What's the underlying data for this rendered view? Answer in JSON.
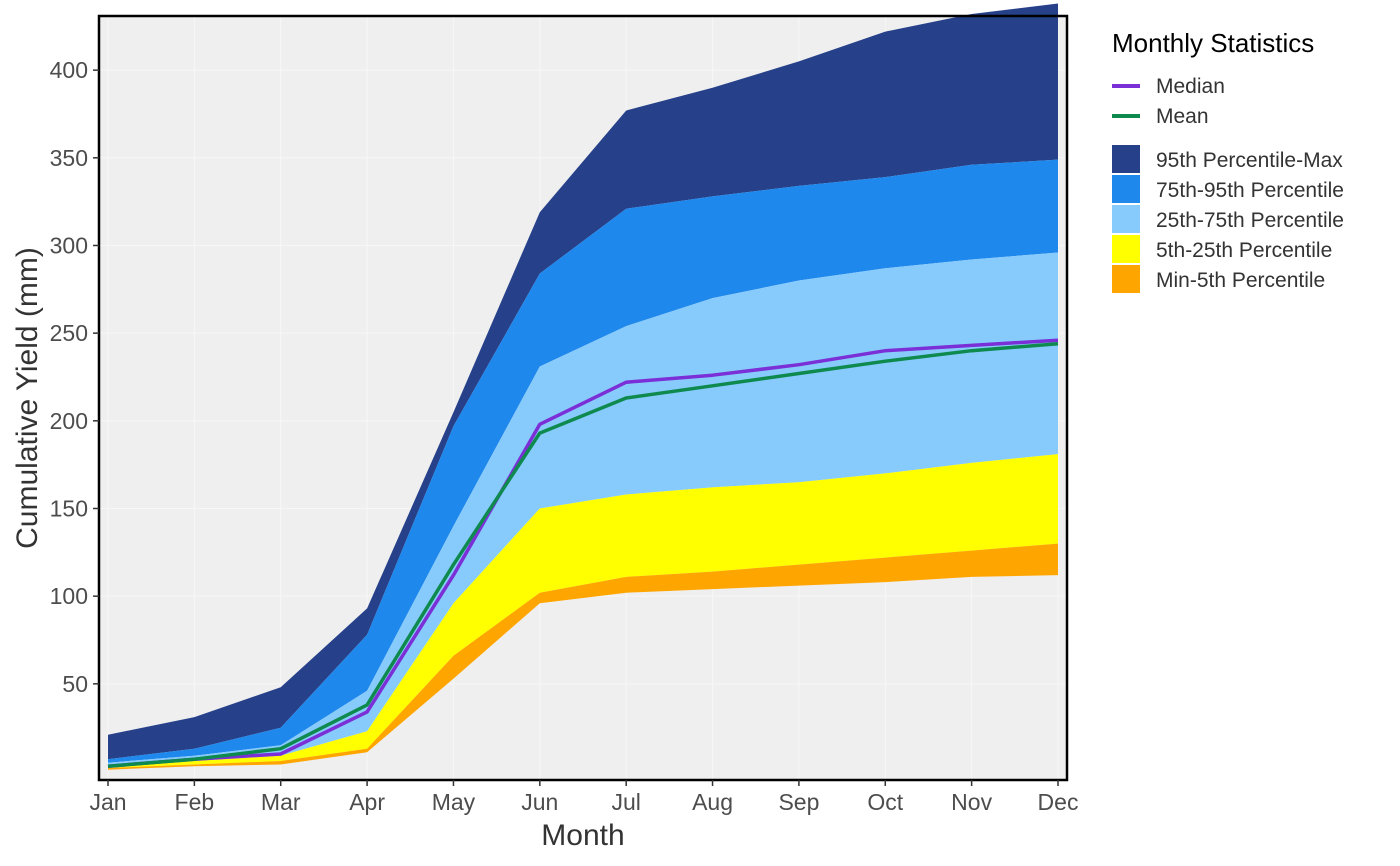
{
  "chart_data": {
    "type": "area",
    "xlabel": "Month",
    "ylabel": "Cumulative Yield (mm)",
    "categories": [
      "Jan",
      "Feb",
      "Mar",
      "Apr",
      "May",
      "Jun",
      "Jul",
      "Aug",
      "Sep",
      "Oct",
      "Nov",
      "Dec"
    ],
    "ylim": [
      0,
      435
    ],
    "yticks": [
      50,
      100,
      150,
      200,
      250,
      300,
      350,
      400
    ],
    "grid": true,
    "background": "#efefef",
    "legend_title": "Monthly Statistics",
    "legend_position": "right",
    "bands": [
      {
        "name": "95th Percentile-Max",
        "color": "#26418a",
        "lower": [
          7,
          13,
          25,
          78,
          197,
          284,
          321,
          328,
          334,
          339,
          346,
          349
        ],
        "upper": [
          21,
          31,
          48,
          93,
          205,
          319,
          377,
          390,
          405,
          422,
          432,
          438
        ]
      },
      {
        "name": "75th-95th Percentile",
        "color": "#1e88ec",
        "lower": [
          5,
          9,
          15,
          46,
          140,
          231,
          254,
          270,
          280,
          287,
          292,
          296
        ],
        "upper": [
          7,
          13,
          25,
          78,
          197,
          284,
          321,
          328,
          334,
          339,
          346,
          349
        ]
      },
      {
        "name": "25th-75th Percentile",
        "color": "#87cbfd",
        "lower": [
          3,
          6,
          9,
          23,
          96,
          150,
          158,
          162,
          165,
          170,
          176,
          181
        ],
        "upper": [
          5,
          9,
          15,
          46,
          140,
          231,
          254,
          270,
          280,
          287,
          292,
          296
        ]
      },
      {
        "name": "5th-25th Percentile",
        "color": "#ffff00",
        "lower": [
          2,
          4,
          6,
          13,
          66,
          102,
          111,
          114,
          118,
          122,
          126,
          130
        ],
        "upper": [
          3,
          6,
          9,
          23,
          96,
          150,
          158,
          162,
          165,
          170,
          176,
          181
        ]
      },
      {
        "name": "Min-5th Percentile",
        "color": "#ffa500",
        "lower": [
          1,
          3,
          4,
          11,
          53,
          96,
          102,
          104,
          106,
          108,
          111,
          112
        ],
        "upper": [
          2,
          4,
          6,
          13,
          66,
          102,
          111,
          114,
          118,
          122,
          126,
          130
        ]
      }
    ],
    "series": [
      {
        "name": "Median",
        "color": "#7b2fd6",
        "values": [
          3,
          7,
          10,
          34,
          112,
          198,
          222,
          226,
          232,
          240,
          243,
          246
        ]
      },
      {
        "name": "Mean",
        "color": "#0f8a4f",
        "values": [
          3,
          7,
          13,
          38,
          118,
          193,
          213,
          220,
          227,
          234,
          240,
          244
        ]
      }
    ]
  }
}
